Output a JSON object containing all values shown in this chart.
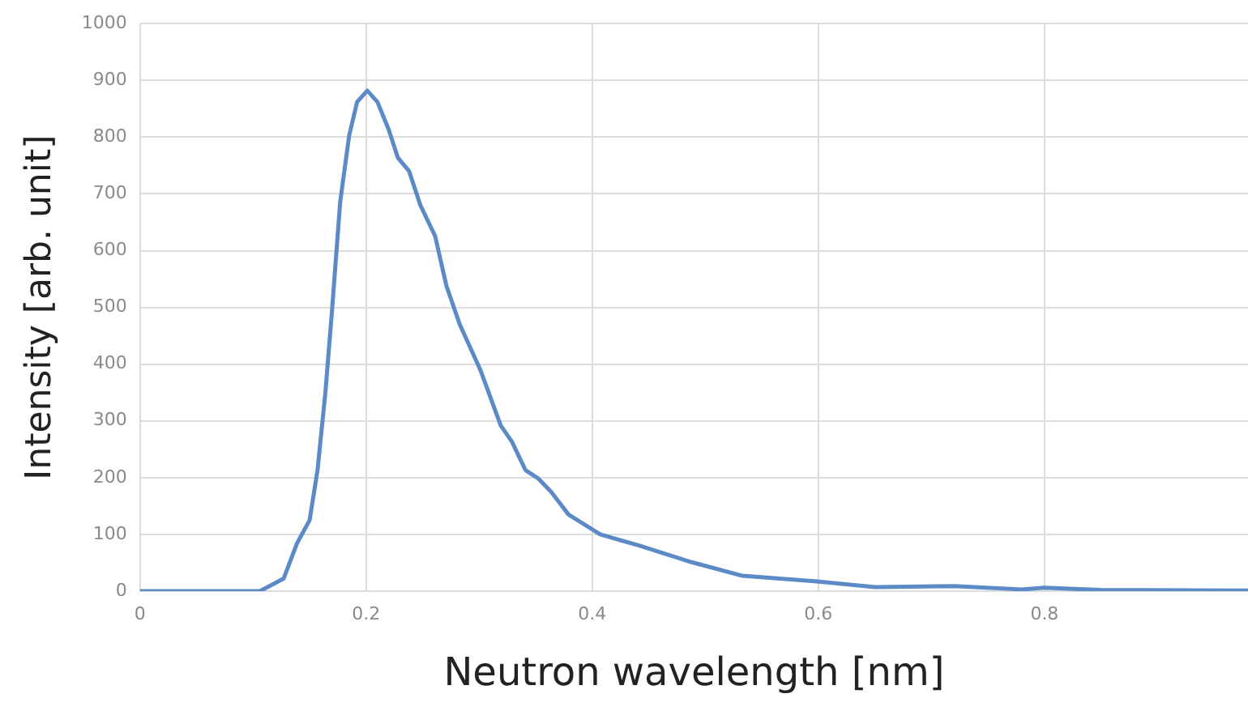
{
  "chart_data": {
    "type": "line",
    "xlabel": "Neutron wavelength [nm]",
    "ylabel": "Intensity [arb. unit]",
    "x": [
      0,
      0.106,
      0.127,
      0.139,
      0.15,
      0.157,
      0.164,
      0.17,
      0.177,
      0.185,
      0.192,
      0.201,
      0.21,
      0.22,
      0.228,
      0.238,
      0.248,
      0.261,
      0.271,
      0.283,
      0.301,
      0.319,
      0.329,
      0.341,
      0.352,
      0.364,
      0.379,
      0.407,
      0.442,
      0.488,
      0.533,
      0.599,
      0.65,
      0.72,
      0.78,
      0.8,
      0.85,
      0.98
    ],
    "series": [
      {
        "color": "#5b8ac6",
        "values": [
          0,
          0,
          22,
          85,
          125,
          213,
          351,
          499,
          685,
          803,
          862,
          882,
          862,
          813,
          764,
          740,
          680,
          626,
          538,
          469,
          390,
          292,
          263,
          213,
          199,
          174,
          135,
          100,
          80,
          51,
          27,
          17,
          7,
          9,
          3,
          6,
          2,
          1
        ]
      }
    ],
    "xlim": [
      0,
      0.98
    ],
    "xticks": [
      0,
      0.2,
      0.4,
      0.6,
      0.8
    ],
    "ylim": [
      0,
      1000
    ],
    "yticks": [
      0,
      100,
      200,
      300,
      400,
      500,
      600,
      700,
      800,
      900,
      1000
    ],
    "grid": true,
    "legend": false,
    "marker": "none",
    "line_style": "solid"
  }
}
